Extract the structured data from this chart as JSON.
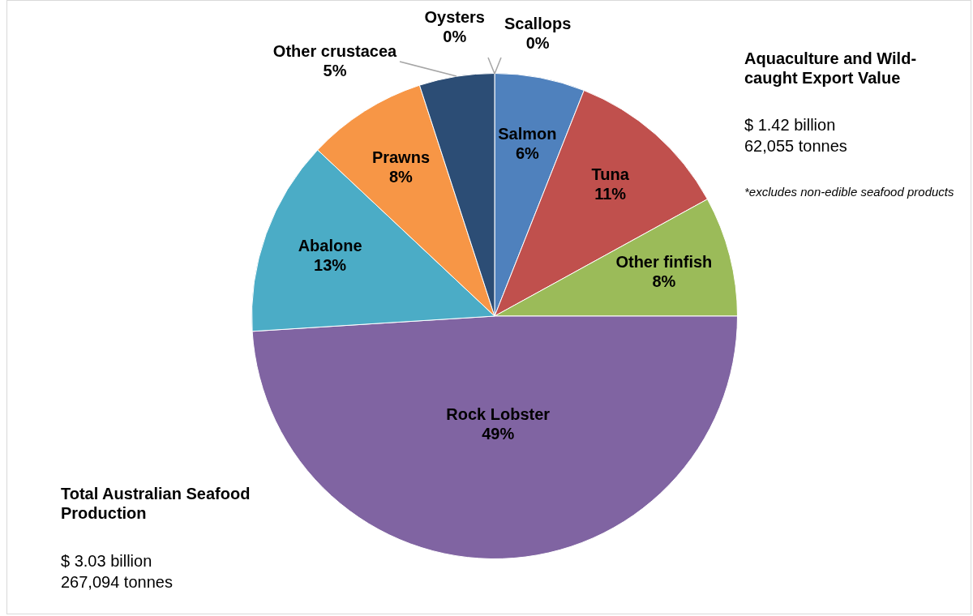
{
  "chart_data": {
    "type": "pie",
    "categories": [
      "Salmon",
      "Tuna",
      "Other finfish",
      "Rock Lobster",
      "Abalone",
      "Prawns",
      "Other crustacea",
      "Oysters",
      "Scallops"
    ],
    "values": [
      6,
      11,
      8,
      49,
      13,
      8,
      5,
      0,
      0
    ],
    "colors": [
      "#4f81bd",
      "#c0504d",
      "#9bbb59",
      "#8064a2",
      "#4bacc6",
      "#f79646",
      "#2c4d75",
      "#a5a5a5",
      "#a5a5a5"
    ],
    "value_labels": [
      "6%",
      "11%",
      "8%",
      "49%",
      "13%",
      "8%",
      "5%",
      "0%",
      "0%"
    ],
    "legend": false,
    "annotations": [
      "Aquaculture and Wild-caught Export Value",
      "$ 1.42 billion",
      "62,055 tonnes",
      "*excludes non-edible seafood products",
      "Total Australian Seafood Production",
      "$ 3.03 billion",
      "267,094 tonnes"
    ]
  }
}
